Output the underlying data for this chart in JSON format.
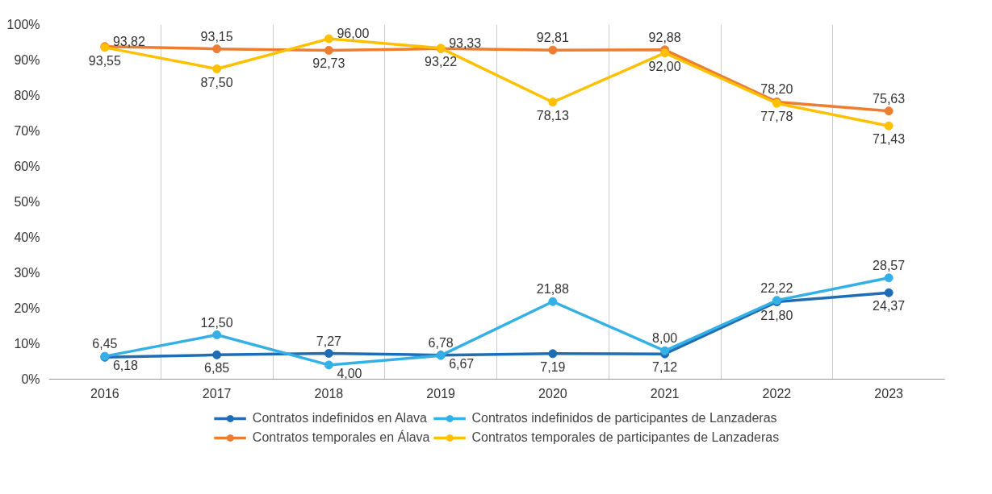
{
  "chart_data": {
    "type": "line",
    "categories": [
      "2016",
      "2017",
      "2018",
      "2019",
      "2020",
      "2021",
      "2022",
      "2023"
    ],
    "series": [
      {
        "name": "Contratos indefinidos en Alava",
        "color": "#1f6eb5",
        "values": [
          6.18,
          6.85,
          7.27,
          6.78,
          7.19,
          7.12,
          21.8,
          24.37
        ],
        "value_labels": [
          "6,18",
          "6,85",
          "7,27",
          "6,78",
          "7,19",
          "7,12",
          "21,80",
          "24,37"
        ]
      },
      {
        "name": "Contratos temporales en Álava",
        "color": "#ed7d31",
        "values": [
          93.82,
          93.15,
          92.73,
          93.22,
          92.81,
          92.88,
          78.2,
          75.63
        ],
        "value_labels": [
          "93,82",
          "93,15",
          "92,73",
          "93,22",
          "92,81",
          "92,88",
          "78,20",
          "75,63"
        ]
      },
      {
        "name": "Contratos indefinidos de participantes de Lanzaderas",
        "color": "#35b0e6",
        "values": [
          6.45,
          12.5,
          4.0,
          6.67,
          21.88,
          8.0,
          22.22,
          28.57
        ],
        "value_labels": [
          "6,45",
          "12,50",
          "4,00",
          "6,67",
          "21,88",
          "8,00",
          "22,22",
          "28,57"
        ]
      },
      {
        "name": "Contratos temporales de participantes de Lanzaderas",
        "color": "#ffc000",
        "values": [
          93.55,
          87.5,
          96.0,
          93.33,
          78.13,
          92.0,
          77.78,
          71.43
        ],
        "value_labels": [
          "93,55",
          "87,50",
          "96,00",
          "93,33",
          "78,13",
          "92,00",
          "77,78",
          "71,43"
        ]
      }
    ],
    "ylim": [
      0,
      100
    ],
    "yticks": [
      {
        "value": 0,
        "label": "0%"
      },
      {
        "value": 10,
        "label": "10%"
      },
      {
        "value": 20,
        "label": "20%"
      },
      {
        "value": 30,
        "label": "30%"
      },
      {
        "value": 40,
        "label": "40%"
      },
      {
        "value": 50,
        "label": "50%"
      },
      {
        "value": 60,
        "label": "60%"
      },
      {
        "value": 70,
        "label": "70%"
      },
      {
        "value": 80,
        "label": "80%"
      },
      {
        "value": 90,
        "label": "90%"
      },
      {
        "value": 100,
        "label": "100%"
      }
    ],
    "grid": "x",
    "legend": "bottom",
    "marker": "circle",
    "line_style": "solid"
  }
}
